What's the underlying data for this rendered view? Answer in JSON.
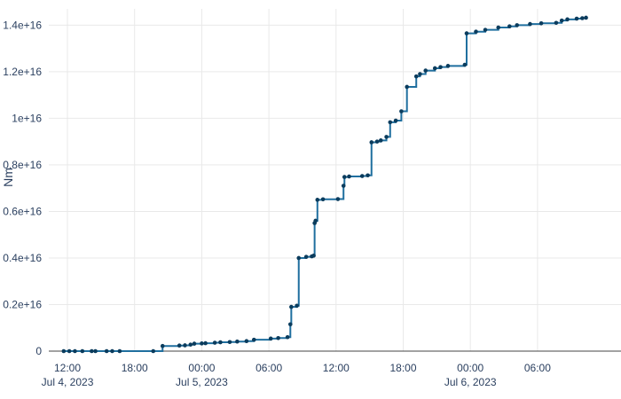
{
  "chart_data": {
    "type": "line",
    "line_shape": "step",
    "title": "",
    "xlabel": "",
    "ylabel": "Nm",
    "xlim": [
      "2023-07-04T10:20",
      "2023-07-06T12:40"
    ],
    "ylim": [
      0,
      1.47e+16
    ],
    "grid": true,
    "legend": "none",
    "colors": {
      "line": "#1f6f9f",
      "marker": "#0b3c5d",
      "grid": "#e9e9e9",
      "axis": "#444444",
      "text": "#2a3f5f"
    },
    "x_ticks": [
      {
        "value": "2023-07-04T12:00",
        "time": "12:00",
        "date": "Jul 4, 2023"
      },
      {
        "value": "2023-07-04T18:00",
        "time": "18:00",
        "date": ""
      },
      {
        "value": "2023-07-05T00:00",
        "time": "00:00",
        "date": "Jul 5, 2023"
      },
      {
        "value": "2023-07-05T06:00",
        "time": "06:00",
        "date": ""
      },
      {
        "value": "2023-07-05T12:00",
        "time": "12:00",
        "date": ""
      },
      {
        "value": "2023-07-05T18:00",
        "time": "18:00",
        "date": ""
      },
      {
        "value": "2023-07-06T00:00",
        "time": "00:00",
        "date": "Jul 6, 2023"
      },
      {
        "value": "2023-07-06T06:00",
        "time": "06:00",
        "date": ""
      }
    ],
    "y_ticks": [
      {
        "value": 0,
        "label": "0"
      },
      {
        "value": 2000000000000000.0,
        "label": "0.2e+16"
      },
      {
        "value": 4000000000000000.0,
        "label": "0.4e+16"
      },
      {
        "value": 6000000000000000.0,
        "label": "0.6e+16"
      },
      {
        "value": 8000000000000000.0,
        "label": "0.8e+16"
      },
      {
        "value": 1e+16,
        "label": "1e+16"
      },
      {
        "value": 1.2e+16,
        "label": "1.2e+16"
      },
      {
        "value": 1.4e+16,
        "label": "1.4e+16"
      }
    ],
    "series": [
      {
        "points": [
          [
            "2023-07-04T11:40",
            0
          ],
          [
            "2023-07-04T12:10",
            0
          ],
          [
            "2023-07-04T12:40",
            0
          ],
          [
            "2023-07-04T13:20",
            0
          ],
          [
            "2023-07-04T14:10",
            0
          ],
          [
            "2023-07-04T14:30",
            0
          ],
          [
            "2023-07-04T15:30",
            0
          ],
          [
            "2023-07-04T16:00",
            0
          ],
          [
            "2023-07-04T16:40",
            0
          ],
          [
            "2023-07-04T19:40",
            0
          ],
          [
            "2023-07-04T20:30",
            220000000000000.0
          ],
          [
            "2023-07-04T22:00",
            240000000000000.0
          ],
          [
            "2023-07-04T22:30",
            250000000000000.0
          ],
          [
            "2023-07-04T23:00",
            280000000000000.0
          ],
          [
            "2023-07-04T23:20",
            320000000000000.0
          ],
          [
            "2023-07-05T00:00",
            330000000000000.0
          ],
          [
            "2023-07-05T00:20",
            340000000000000.0
          ],
          [
            "2023-07-05T01:10",
            360000000000000.0
          ],
          [
            "2023-07-05T01:40",
            380000000000000.0
          ],
          [
            "2023-07-05T02:30",
            390000000000000.0
          ],
          [
            "2023-07-05T03:10",
            410000000000000.0
          ],
          [
            "2023-07-05T04:00",
            430000000000000.0
          ],
          [
            "2023-07-05T04:40",
            490000000000000.0
          ],
          [
            "2023-07-05T06:10",
            540000000000000.0
          ],
          [
            "2023-07-05T06:50",
            560000000000000.0
          ],
          [
            "2023-07-05T07:40",
            600000000000000.0
          ],
          [
            "2023-07-05T07:55",
            1150000000000000.0
          ],
          [
            "2023-07-05T08:00",
            1900000000000000.0
          ],
          [
            "2023-07-05T08:30",
            1950000000000000.0
          ],
          [
            "2023-07-05T08:40",
            4000000000000000.0
          ],
          [
            "2023-07-05T09:20",
            4050000000000000.0
          ],
          [
            "2023-07-05T09:50",
            4070000000000000.0
          ],
          [
            "2023-07-05T10:00",
            4100000000000000.0
          ],
          [
            "2023-07-05T10:05",
            5500000000000000.0
          ],
          [
            "2023-07-05T10:10",
            5600000000000000.0
          ],
          [
            "2023-07-05T10:20",
            6500000000000000.0
          ],
          [
            "2023-07-05T10:50",
            6520000000000000.0
          ],
          [
            "2023-07-05T12:10",
            6530000000000000.0
          ],
          [
            "2023-07-05T12:40",
            7100000000000000.0
          ],
          [
            "2023-07-05T12:45",
            7480000000000000.0
          ],
          [
            "2023-07-05T13:10",
            7500000000000000.0
          ],
          [
            "2023-07-05T14:20",
            7520000000000000.0
          ],
          [
            "2023-07-05T14:50",
            7550000000000000.0
          ],
          [
            "2023-07-05T15:10",
            8970000000000000.0
          ],
          [
            "2023-07-05T15:40",
            9000000000000000.0
          ],
          [
            "2023-07-05T16:00",
            9050000000000000.0
          ],
          [
            "2023-07-05T16:30",
            9200000000000000.0
          ],
          [
            "2023-07-05T16:50",
            9830000000000000.0
          ],
          [
            "2023-07-05T17:20",
            9900000000000000.0
          ],
          [
            "2023-07-05T17:50",
            1.03e+16
          ],
          [
            "2023-07-05T18:20",
            1.135e+16
          ],
          [
            "2023-07-05T19:10",
            1.18e+16
          ],
          [
            "2023-07-05T19:30",
            1.19e+16
          ],
          [
            "2023-07-05T20:00",
            1.205e+16
          ],
          [
            "2023-07-05T20:50",
            1.215e+16
          ],
          [
            "2023-07-05T21:20",
            1.22e+16
          ],
          [
            "2023-07-05T22:00",
            1.225e+16
          ],
          [
            "2023-07-05T23:30",
            1.23e+16
          ],
          [
            "2023-07-05T23:40",
            1.365e+16
          ],
          [
            "2023-07-06T00:30",
            1.372e+16
          ],
          [
            "2023-07-06T01:20",
            1.38e+16
          ],
          [
            "2023-07-06T02:30",
            1.39e+16
          ],
          [
            "2023-07-06T03:30",
            1.395e+16
          ],
          [
            "2023-07-06T04:10",
            1.4e+16
          ],
          [
            "2023-07-06T05:20",
            1.405e+16
          ],
          [
            "2023-07-06T06:20",
            1.408e+16
          ],
          [
            "2023-07-06T07:40",
            1.41e+16
          ],
          [
            "2023-07-06T08:10",
            1.42e+16
          ],
          [
            "2023-07-06T08:40",
            1.425e+16
          ],
          [
            "2023-07-06T09:30",
            1.428e+16
          ],
          [
            "2023-07-06T10:00",
            1.43e+16
          ],
          [
            "2023-07-06T10:20",
            1.432e+16
          ]
        ]
      }
    ]
  }
}
